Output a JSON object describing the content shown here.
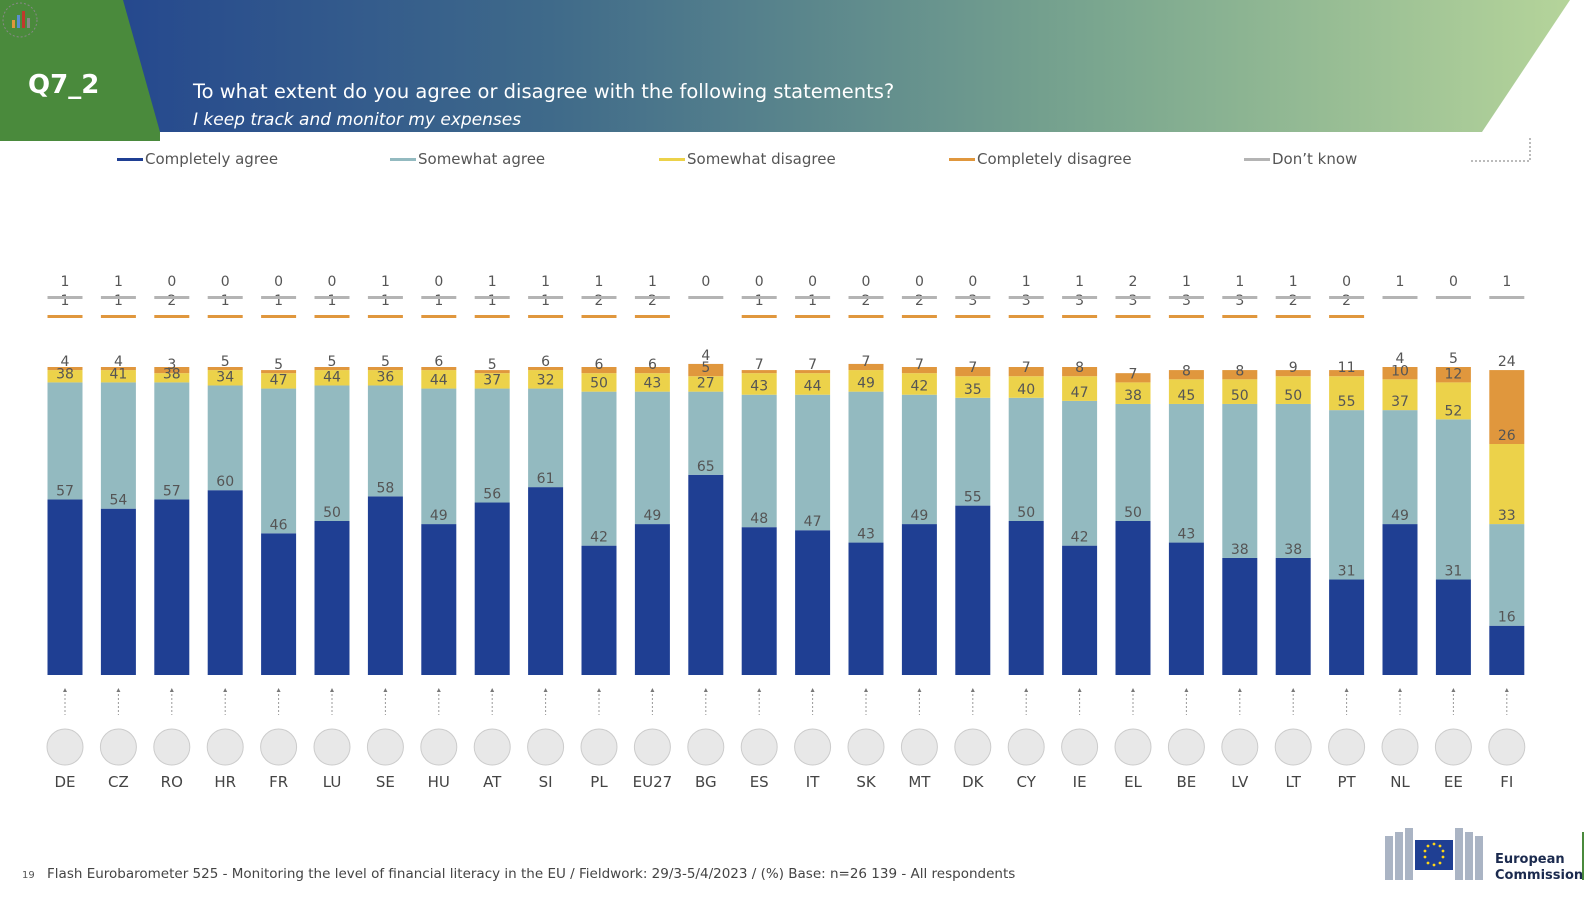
{
  "header": {
    "code": "Q7_2",
    "title": "To what extent do you agree or disagree with the following statements?",
    "subtitle": "I keep track and monitor my expenses"
  },
  "legend": [
    {
      "label": "Completely agree",
      "color": "#1f3f93"
    },
    {
      "label": "Somewhat agree",
      "color": "#93bac0"
    },
    {
      "label": "Somewhat disagree",
      "color": "#ecd24a"
    },
    {
      "label": "Completely disagree",
      "color": "#e0973d"
    },
    {
      "label": "Don’t know",
      "color": "#b4b4b4"
    }
  ],
  "chart_data": {
    "type": "bar",
    "stacked": true,
    "unit": "%",
    "categories": [
      "DE",
      "CZ",
      "RO",
      "HR",
      "FR",
      "LU",
      "SE",
      "HU",
      "AT",
      "SI",
      "PL",
      "EU27",
      "BG",
      "ES",
      "IT",
      "SK",
      "MT",
      "DK",
      "CY",
      "IE",
      "EL",
      "BE",
      "LV",
      "LT",
      "PT",
      "NL",
      "EE",
      "FI"
    ],
    "series": [
      {
        "name": "Completely agree",
        "color": "#1f3f93",
        "values": [
          57,
          54,
          57,
          60,
          46,
          50,
          58,
          49,
          56,
          61,
          42,
          49,
          65,
          48,
          47,
          43,
          49,
          55,
          50,
          42,
          50,
          43,
          38,
          38,
          31,
          49,
          31,
          16
        ]
      },
      {
        "name": "Somewhat agree",
        "color": "#93bac0",
        "values": [
          38,
          41,
          38,
          34,
          47,
          44,
          36,
          44,
          37,
          32,
          50,
          43,
          27,
          43,
          44,
          49,
          42,
          35,
          40,
          47,
          38,
          45,
          50,
          50,
          55,
          37,
          52,
          33
        ]
      },
      {
        "name": "Somewhat disagree",
        "color": "#ecd24a",
        "values": [
          4,
          4,
          3,
          5,
          5,
          5,
          5,
          6,
          5,
          6,
          6,
          6,
          5,
          7,
          7,
          7,
          7,
          7,
          7,
          8,
          7,
          8,
          8,
          9,
          11,
          10,
          12,
          26
        ]
      },
      {
        "name": "Completely disagree",
        "color": "#e0973d",
        "values": [
          1,
          1,
          2,
          1,
          1,
          1,
          1,
          1,
          1,
          1,
          2,
          2,
          4,
          1,
          1,
          2,
          2,
          3,
          3,
          3,
          3,
          3,
          3,
          2,
          2,
          4,
          5,
          24
        ]
      },
      {
        "name": "Don’t know",
        "color": "#b4b4b4",
        "values": [
          1,
          1,
          0,
          0,
          0,
          0,
          1,
          0,
          1,
          1,
          1,
          1,
          0,
          0,
          0,
          0,
          0,
          0,
          1,
          1,
          2,
          1,
          1,
          1,
          0,
          1,
          0,
          1
        ]
      }
    ]
  },
  "footer": {
    "page": "19",
    "text": "Flash Eurobarometer 525 - Monitoring the level of financial literacy in the EU   /   Fieldwork: 29/3-5/4/2023   /   (%) Base: n=26 139 - All respondents"
  },
  "logo": {
    "line1": "European",
    "line2": "Commission"
  }
}
